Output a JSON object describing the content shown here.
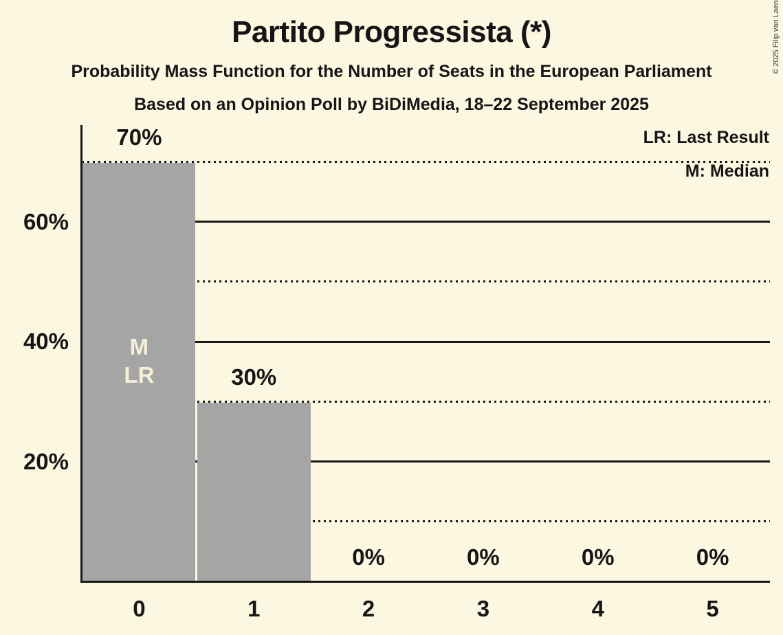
{
  "title": "Partito Progressista (*)",
  "subtitle1": "Probability Mass Function for the Number of Seats in the European Parliament",
  "subtitle2": "Based on an Opinion Poll by BiDiMedia, 18–22 September 2025",
  "copyright": "© 2025 Filip van Laenen",
  "legend": {
    "lr": "LR: Last Result",
    "m": "M: Median"
  },
  "colors": {
    "background": "#fbf7e1",
    "bar": "#a5a5a5",
    "text": "#161616",
    "bar_annotation_text": "#f5efd8"
  },
  "chart_data": {
    "type": "bar",
    "title": "Partito Progressista (*)",
    "categories": [
      "0",
      "1",
      "2",
      "3",
      "4",
      "5"
    ],
    "values": [
      70,
      30,
      0,
      0,
      0,
      0
    ],
    "value_labels": [
      "70%",
      "30%",
      "0%",
      "0%",
      "0%",
      "0%"
    ],
    "bar_annotations": [
      {
        "index": 0,
        "lines": [
          "M",
          "LR"
        ]
      }
    ],
    "ylim": [
      0,
      76
    ],
    "yticks_solid": [
      20,
      40,
      60
    ],
    "yticks_dotted": [
      10,
      30,
      50,
      70
    ],
    "ytick_labels": [
      {
        "value": 20,
        "label": "20%"
      },
      {
        "value": 40,
        "label": "40%"
      },
      {
        "value": 60,
        "label": "60%"
      }
    ],
    "grid": "horizontal",
    "legend_position": "top-right"
  }
}
